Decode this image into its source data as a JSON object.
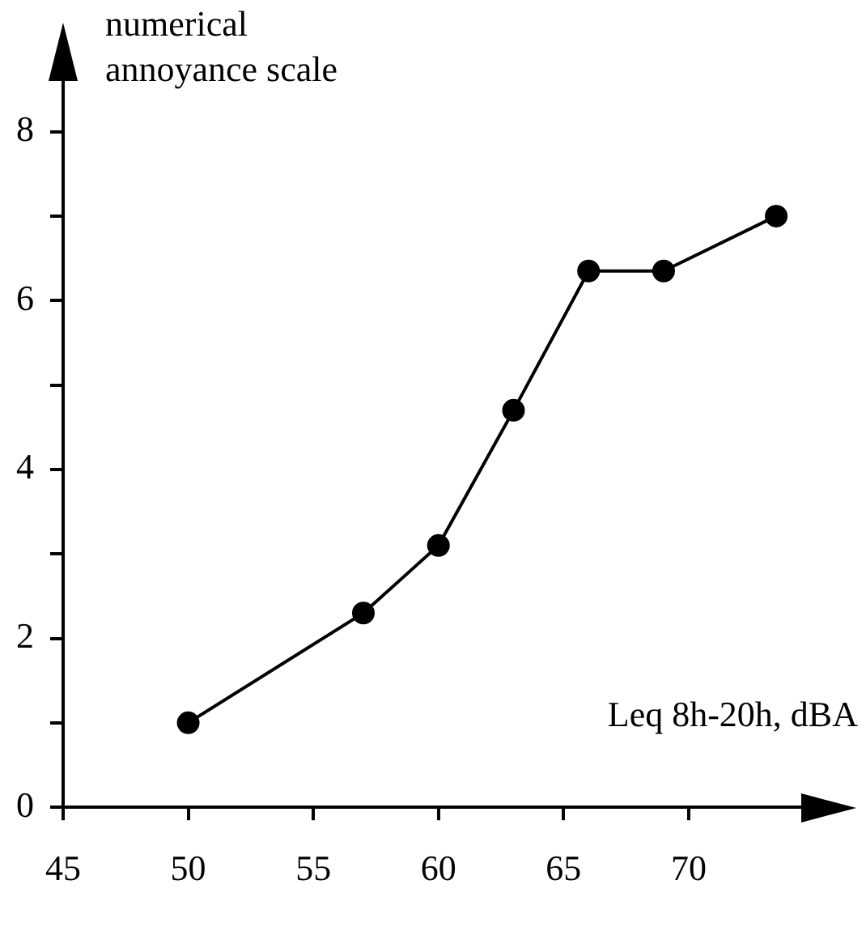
{
  "chart_data": {
    "type": "line",
    "xlabel": "Leq 8h-20h, dBA",
    "ylabel": "numerical\nannoyance scale",
    "x": [
      50,
      57,
      60,
      63,
      66,
      69,
      73.5
    ],
    "series": [
      {
        "color": "#000000",
        "values": [
          1.0,
          2.3,
          3.1,
          4.7,
          6.35,
          6.35,
          7.0
        ]
      }
    ],
    "xlim": [
      45,
      74.5
    ],
    "xticks": [
      45,
      50,
      55,
      60,
      65,
      70
    ],
    "ylim": [
      0,
      8.6
    ],
    "yticks": [
      0,
      {
        "value": 1,
        "label": null
      },
      2,
      {
        "value": 3,
        "label": null
      },
      4,
      {
        "value": 5,
        "label": null
      },
      6,
      {
        "value": 7,
        "label": null
      },
      8
    ],
    "grid": false,
    "legend": false,
    "marker": "circle",
    "line_style": "solid"
  }
}
